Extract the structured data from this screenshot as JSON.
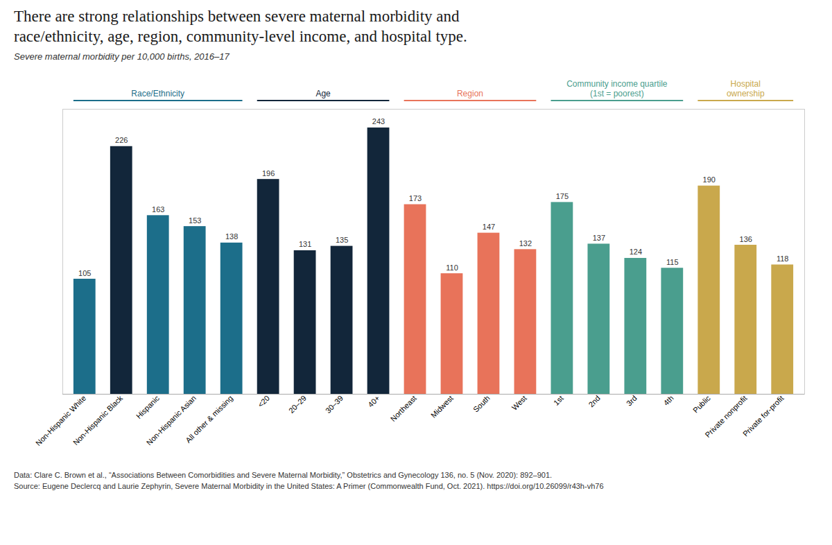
{
  "chart_data": {
    "type": "bar",
    "title": "There are strong relationships between severe maternal morbidity and\nrace/ethnicity, age, region, community-level income, and hospital type.",
    "subtitle": "Severe maternal morbidity per 10,000 births, 2016–17",
    "categories": [
      "Non-Hispanic White",
      "Non-Hispanic Black",
      "Hispanic",
      "Non-Hispanic Asian",
      "All other & missing",
      "<20",
      "20–29",
      "30–39",
      "40+",
      "Northeast",
      "Midwest",
      "South",
      "West",
      "1st",
      "2nd",
      "3rd",
      "4th",
      "Public",
      "Private nonprofit",
      "Private for-profit"
    ],
    "values": [
      105,
      226,
      163,
      153,
      138,
      196,
      131,
      135,
      243,
      173,
      110,
      147,
      132,
      175,
      137,
      124,
      115,
      190,
      136,
      118
    ],
    "colors": [
      "#1c6e8a",
      "#12263a",
      "#1c6e8a",
      "#1c6e8a",
      "#1c6e8a",
      "#12263a",
      "#12263a",
      "#12263a",
      "#12263a",
      "#e8735a",
      "#e8735a",
      "#e8735a",
      "#e8735a",
      "#4a9e8e",
      "#4a9e8e",
      "#4a9e8e",
      "#4a9e8e",
      "#c9a84c",
      "#c9a84c",
      "#c9a84c"
    ],
    "groups": [
      {
        "name": "Race/Ethnicity",
        "color": "#1c6e8a",
        "first": "Non-Hispanic White",
        "last": "All other & missing"
      },
      {
        "name": "Age",
        "color": "#12263a",
        "first": "<20",
        "last": "40+"
      },
      {
        "name": "Region",
        "color": "#e8735a",
        "first": "Northeast",
        "last": "West"
      },
      {
        "name": "Community income quartile\n(1st = poorest)",
        "color": "#4a9e8e",
        "first": "1st",
        "last": "4th"
      },
      {
        "name": "Hospital\nownership",
        "color": "#c9a84c",
        "first": "Public",
        "last": "Private for-profit"
      }
    ],
    "notes": [
      "Data: Clare C. Brown et al., “Associations Between Comorbidities and Severe Maternal Morbidity,” Obstetrics and Gynecology 136, no. 5 (Nov. 2020): 892–901.",
      "Source: Eugene Declercq and Laurie Zephyrin, Severe Maternal Morbidity in the United States: A Primer (Commonwealth Fund, Oct. 2021). https://doi.org/10.26099/r43h-vh76"
    ],
    "ylim": [
      0,
      260
    ],
    "data_labels": true,
    "tick_labels": "x",
    "grid": false
  }
}
